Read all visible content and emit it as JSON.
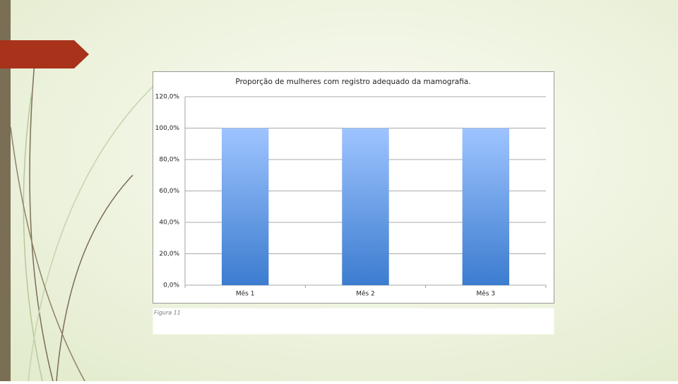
{
  "chart_data": {
    "type": "bar",
    "title": "Proporção de mulheres com registro adequado da mamografia.",
    "categories": [
      "Mês 1",
      "Mês 2",
      "Mês 3"
    ],
    "values": [
      100,
      100,
      100
    ],
    "color": "#4a86d8",
    "ylim": [
      0,
      120
    ],
    "yticks": [
      {
        "value": 0,
        "label": "0,0%"
      },
      {
        "value": 20,
        "label": "20,0%"
      },
      {
        "value": 40,
        "label": "40,0%"
      },
      {
        "value": 60,
        "label": "60,0%"
      },
      {
        "value": 80,
        "label": "80,0%"
      },
      {
        "value": 100,
        "label": "100,0%"
      },
      {
        "value": 120,
        "label": "120,0%"
      }
    ],
    "grid": true
  },
  "caption": "Figura 11"
}
